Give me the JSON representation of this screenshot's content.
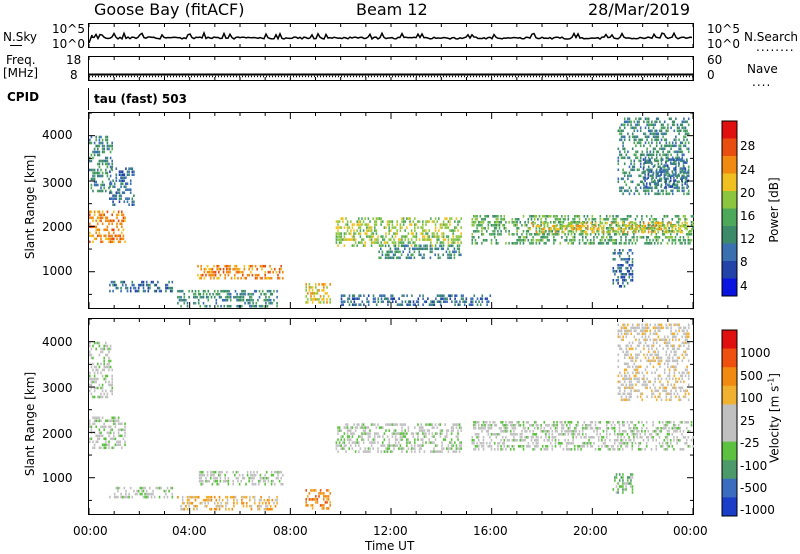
{
  "header": {
    "station": "Goose Bay (fitACF)",
    "beam": "Beam 12",
    "date": "28/Mar/2019"
  },
  "strip": {
    "nsky_label": "N.Sky",
    "nsky_ticks": [
      "10^5",
      "10^0"
    ],
    "nsearch_label": "N.Search",
    "nsearch_ticks": [
      "10^5",
      "10^0"
    ],
    "freq_label_1": "Freq.",
    "freq_label_2": "[MHz]",
    "freq_ticks": [
      "18",
      "8"
    ],
    "nave_label": "Nave",
    "nave_ticks": [
      "60",
      "0"
    ],
    "cpid_label": "CPID",
    "cpid_value": "tau (fast) 503"
  },
  "chart_data": [
    {
      "type": "heatmap",
      "name": "power",
      "xlabel": "",
      "ylabel": "Slant Range [km]",
      "x_ticks": [
        "00:00",
        "04:00",
        "08:00",
        "12:00",
        "16:00",
        "20:00",
        "00:00"
      ],
      "y_ticks": [
        1000,
        2000,
        3000,
        4000
      ],
      "ylim": [
        200,
        4500
      ],
      "xlim_hours": [
        0,
        24
      ],
      "colorbar": {
        "label": "Power [dB]",
        "ticks": [
          "4",
          "8",
          "12",
          "16",
          "20",
          "24",
          "28"
        ],
        "colors": [
          "#0a14e0",
          "#2244a8",
          "#3a6fb0",
          "#3c8a6a",
          "#4ea85a",
          "#8cc63f",
          "#f0c020",
          "#f08a10",
          "#e84e10",
          "#e01010"
        ]
      },
      "regions": [
        {
          "t": [
            0.0,
            1.4
          ],
          "r": [
            1650,
            2350
          ],
          "level": 7
        },
        {
          "t": [
            0.0,
            0.9
          ],
          "r": [
            2800,
            4000
          ],
          "level": 3
        },
        {
          "t": [
            0.8,
            1.8
          ],
          "r": [
            2500,
            3300
          ],
          "level": 2
        },
        {
          "t": [
            0.8,
            3.3
          ],
          "r": [
            600,
            800
          ],
          "level": 2
        },
        {
          "t": [
            4.3,
            7.7
          ],
          "r": [
            850,
            1150
          ],
          "level": 7
        },
        {
          "t": [
            3.5,
            7.5
          ],
          "r": [
            250,
            600
          ],
          "level": 3
        },
        {
          "t": [
            8.6,
            9.6
          ],
          "r": [
            350,
            750
          ],
          "level": 6
        },
        {
          "t": [
            9.8,
            14.8
          ],
          "r": [
            1550,
            2200
          ],
          "level": 5
        },
        {
          "t": [
            11.5,
            14.8
          ],
          "r": [
            1300,
            1600
          ],
          "level": 3
        },
        {
          "t": [
            15.2,
            24.0
          ],
          "r": [
            1600,
            2250
          ],
          "level": 4
        },
        {
          "t": [
            17.5,
            24.0
          ],
          "r": [
            1850,
            2100
          ],
          "level": 6
        },
        {
          "t": [
            21.0,
            23.8
          ],
          "r": [
            2700,
            4400
          ],
          "level": 3
        },
        {
          "t": [
            22.0,
            23.8
          ],
          "r": [
            2850,
            3500
          ],
          "level": 2
        },
        {
          "t": [
            20.8,
            21.6
          ],
          "r": [
            700,
            1500
          ],
          "level": 2
        },
        {
          "t": [
            10.0,
            16.0
          ],
          "r": [
            250,
            500
          ],
          "level": 2
        }
      ]
    },
    {
      "type": "heatmap",
      "name": "velocity",
      "xlabel": "Time UT",
      "ylabel": "Slant Range [km]",
      "x_ticks": [
        "00:00",
        "04:00",
        "08:00",
        "12:00",
        "16:00",
        "20:00",
        "00:00"
      ],
      "y_ticks": [
        1000,
        2000,
        3000,
        4000
      ],
      "ylim": [
        200,
        4500
      ],
      "xlim_hours": [
        0,
        24
      ],
      "colorbar": {
        "label": "Velocity [m s",
        "label_sup": "-1",
        "label_end": "]",
        "ticks": [
          "1000",
          "500",
          "100",
          "25",
          "-25",
          "-100",
          "-500",
          "-1000"
        ],
        "colors": [
          "#1a3ec8",
          "#3a6cc0",
          "#4c9a6a",
          "#5cc040",
          "#c0c0c0",
          "#c0c0c0",
          "#f0b030",
          "#f08a10",
          "#ee5010",
          "#e01010"
        ]
      },
      "regions": [
        {
          "t": [
            0.0,
            1.4
          ],
          "r": [
            1650,
            2350
          ],
          "level": 4
        },
        {
          "t": [
            0.0,
            0.9
          ],
          "r": [
            2800,
            4000
          ],
          "level": 4
        },
        {
          "t": [
            0.8,
            3.3
          ],
          "r": [
            600,
            800
          ],
          "level": 4
        },
        {
          "t": [
            4.3,
            7.7
          ],
          "r": [
            850,
            1150
          ],
          "level": 4
        },
        {
          "t": [
            3.5,
            7.5
          ],
          "r": [
            300,
            600
          ],
          "level": 6
        },
        {
          "t": [
            8.6,
            9.6
          ],
          "r": [
            350,
            750
          ],
          "level": 7
        },
        {
          "t": [
            9.8,
            14.8
          ],
          "r": [
            1550,
            2200
          ],
          "level": 4
        },
        {
          "t": [
            15.2,
            24.0
          ],
          "r": [
            1600,
            2250
          ],
          "level": 4
        },
        {
          "t": [
            21.0,
            23.8
          ],
          "r": [
            2700,
            4400
          ],
          "level": 5
        },
        {
          "t": [
            20.8,
            21.6
          ],
          "r": [
            700,
            1100
          ],
          "level": 3
        }
      ]
    }
  ]
}
